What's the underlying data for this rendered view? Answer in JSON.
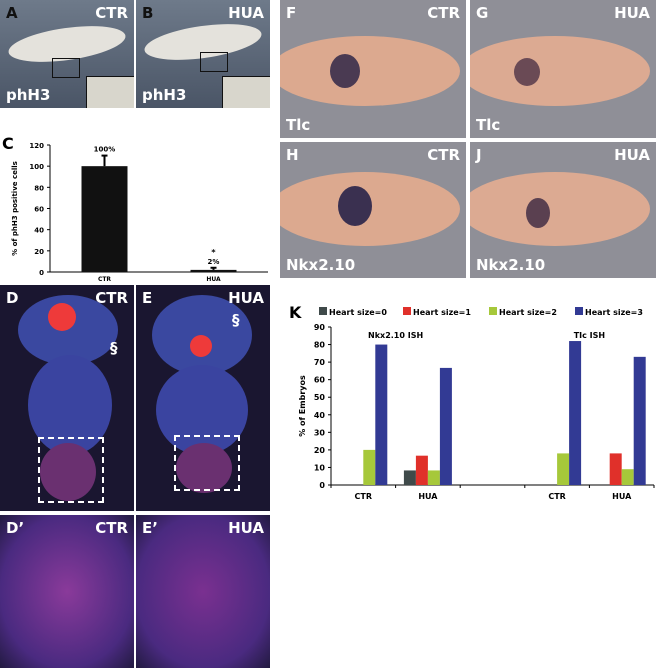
{
  "panels": {
    "A": {
      "letter": "A",
      "cond": "CTR",
      "stain": "phH3"
    },
    "B": {
      "letter": "B",
      "cond": "HUA",
      "stain": "phH3"
    },
    "F": {
      "letter": "F",
      "cond": "CTR",
      "stain": "Tlc"
    },
    "G": {
      "letter": "G",
      "cond": "HUA",
      "stain": "Tlc"
    },
    "H": {
      "letter": "H",
      "cond": "CTR",
      "stain": "Nkx2.10"
    },
    "J": {
      "letter": "J",
      "cond": "HUA",
      "stain": "Nkx2.10"
    },
    "D": {
      "letter": "D",
      "cond": "CTR",
      "mark": "§"
    },
    "E": {
      "letter": "E",
      "cond": "HUA",
      "mark": "§"
    },
    "D2": {
      "letter": "D’",
      "cond": "CTR"
    },
    "E2": {
      "letter": "E’",
      "cond": "HUA"
    }
  },
  "chart_data": [
    {
      "panel": "C",
      "type": "bar",
      "categories": [
        "CTR",
        "HUA"
      ],
      "values": [
        100,
        2
      ],
      "errors": [
        10,
        2
      ],
      "data_labels": [
        "100%",
        "2%"
      ],
      "significance": [
        "",
        "*"
      ],
      "ylabel": "% of phH3 positive cells",
      "ylim": [
        0,
        120
      ],
      "yticks": [
        0,
        20,
        40,
        60,
        80,
        100,
        120
      ],
      "color": "#111111"
    },
    {
      "panel": "K",
      "type": "bar",
      "categories": [
        "CTR",
        "HUA",
        "",
        "CTR",
        "HUA"
      ],
      "group_labels": [
        "Nkx2.10 ISH",
        "TIc ISH"
      ],
      "ylabel": "% of Embryos",
      "ylim": [
        0,
        90
      ],
      "yticks": [
        0,
        10,
        20,
        30,
        40,
        50,
        60,
        70,
        80,
        90
      ],
      "legend": "top",
      "series": [
        {
          "name": "Heart size=0",
          "color": "#3f4a4a",
          "values": [
            0,
            8.3,
            null,
            0,
            0
          ]
        },
        {
          "name": "Heart size=1",
          "color": "#e0302a",
          "values": [
            0,
            16.7,
            null,
            0,
            18
          ]
        },
        {
          "name": "Heart size=2",
          "color": "#a6c83a",
          "values": [
            20,
            8.3,
            null,
            18,
            9
          ]
        },
        {
          "name": "Heart size=3",
          "color": "#323a94",
          "values": [
            80,
            66.7,
            null,
            82,
            73
          ]
        }
      ]
    }
  ]
}
